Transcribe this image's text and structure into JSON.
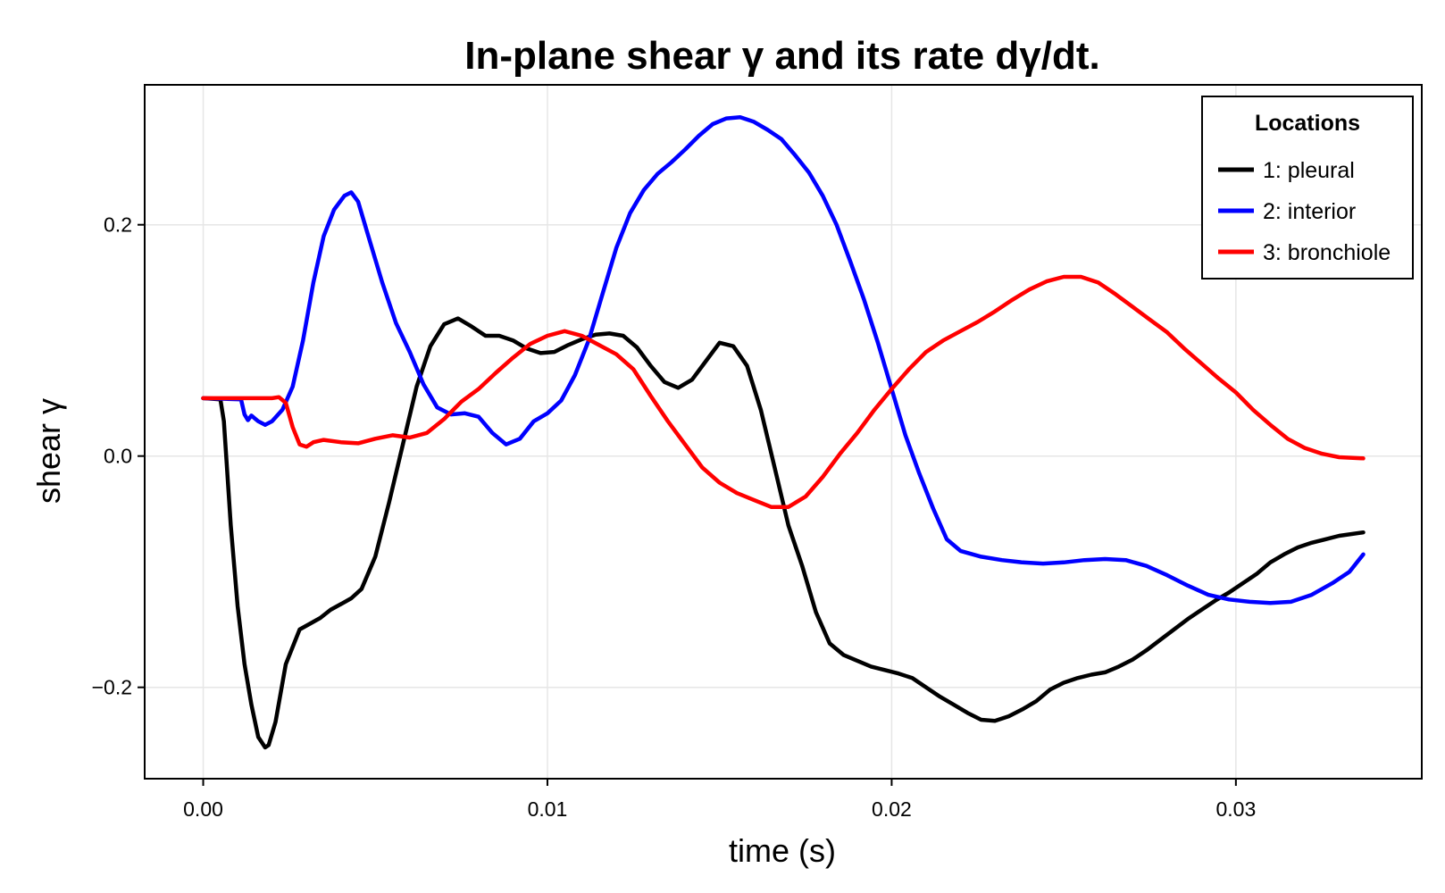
{
  "chart_data": {
    "type": "line",
    "title": "In-plane shear γ and its rate dγ/dt.",
    "xlabel": "time (s)",
    "ylabel": "shear γ",
    "xlim": [
      -0.0017,
      0.0354
    ],
    "ylim": [
      -0.279,
      0.321
    ],
    "xticks": [
      0.0,
      0.01,
      0.02,
      0.03
    ],
    "xtick_labels": [
      "0.00",
      "0.01",
      "0.02",
      "0.03"
    ],
    "yticks": [
      -0.2,
      0.0,
      0.2
    ],
    "ytick_labels": [
      "−0.2",
      "0.0",
      "0.2"
    ],
    "grid": true,
    "legend": {
      "title": "Locations",
      "position": "top-right"
    },
    "series": [
      {
        "name": "1: pleural",
        "color": "#000000",
        "points": [
          [
            0.0,
            0.05
          ],
          [
            0.0005,
            0.049
          ],
          [
            0.0006,
            0.03
          ],
          [
            0.0008,
            -0.06
          ],
          [
            0.001,
            -0.13
          ],
          [
            0.0012,
            -0.18
          ],
          [
            0.0014,
            -0.215
          ],
          [
            0.0016,
            -0.243
          ],
          [
            0.0018,
            -0.252
          ],
          [
            0.0019,
            -0.25
          ],
          [
            0.0021,
            -0.23
          ],
          [
            0.0024,
            -0.18
          ],
          [
            0.0028,
            -0.15
          ],
          [
            0.0031,
            -0.145
          ],
          [
            0.0034,
            -0.14
          ],
          [
            0.0037,
            -0.133
          ],
          [
            0.004,
            -0.128
          ],
          [
            0.0043,
            -0.123
          ],
          [
            0.0046,
            -0.115
          ],
          [
            0.005,
            -0.087
          ],
          [
            0.0054,
            -0.04
          ],
          [
            0.0058,
            0.01
          ],
          [
            0.0062,
            0.06
          ],
          [
            0.0066,
            0.095
          ],
          [
            0.007,
            0.114
          ],
          [
            0.0074,
            0.119
          ],
          [
            0.0078,
            0.112
          ],
          [
            0.0082,
            0.104
          ],
          [
            0.0086,
            0.104
          ],
          [
            0.009,
            0.1
          ],
          [
            0.0094,
            0.093
          ],
          [
            0.0098,
            0.089
          ],
          [
            0.0102,
            0.09
          ],
          [
            0.0106,
            0.096
          ],
          [
            0.011,
            0.101
          ],
          [
            0.0114,
            0.105
          ],
          [
            0.0118,
            0.106
          ],
          [
            0.0122,
            0.104
          ],
          [
            0.0126,
            0.094
          ],
          [
            0.013,
            0.078
          ],
          [
            0.0134,
            0.064
          ],
          [
            0.0138,
            0.059
          ],
          [
            0.0142,
            0.066
          ],
          [
            0.0146,
            0.082
          ],
          [
            0.015,
            0.098
          ],
          [
            0.0154,
            0.095
          ],
          [
            0.0158,
            0.078
          ],
          [
            0.0162,
            0.04
          ],
          [
            0.0166,
            -0.01
          ],
          [
            0.017,
            -0.06
          ],
          [
            0.0174,
            -0.095
          ],
          [
            0.0178,
            -0.135
          ],
          [
            0.0182,
            -0.162
          ],
          [
            0.0186,
            -0.172
          ],
          [
            0.019,
            -0.177
          ],
          [
            0.0194,
            -0.182
          ],
          [
            0.0198,
            -0.185
          ],
          [
            0.0202,
            -0.188
          ],
          [
            0.0206,
            -0.192
          ],
          [
            0.021,
            -0.2
          ],
          [
            0.0214,
            -0.208
          ],
          [
            0.0218,
            -0.215
          ],
          [
            0.0222,
            -0.222
          ],
          [
            0.0226,
            -0.228
          ],
          [
            0.023,
            -0.229
          ],
          [
            0.0234,
            -0.225
          ],
          [
            0.0238,
            -0.219
          ],
          [
            0.0242,
            -0.212
          ],
          [
            0.0246,
            -0.202
          ],
          [
            0.025,
            -0.196
          ],
          [
            0.0254,
            -0.192
          ],
          [
            0.0258,
            -0.189
          ],
          [
            0.0262,
            -0.187
          ],
          [
            0.0266,
            -0.182
          ],
          [
            0.027,
            -0.176
          ],
          [
            0.0274,
            -0.168
          ],
          [
            0.0278,
            -0.159
          ],
          [
            0.0282,
            -0.15
          ],
          [
            0.0286,
            -0.141
          ],
          [
            0.029,
            -0.133
          ],
          [
            0.0294,
            -0.125
          ],
          [
            0.0298,
            -0.118
          ],
          [
            0.0302,
            -0.11
          ],
          [
            0.0306,
            -0.102
          ],
          [
            0.031,
            -0.092
          ],
          [
            0.0314,
            -0.085
          ],
          [
            0.0318,
            -0.079
          ],
          [
            0.0322,
            -0.075
          ],
          [
            0.0326,
            -0.072
          ],
          [
            0.033,
            -0.069
          ],
          [
            0.0337,
            -0.066
          ]
        ]
      },
      {
        "name": "2: interior",
        "color": "#0000ff",
        "points": [
          [
            0.0,
            0.05
          ],
          [
            0.0011,
            0.049
          ],
          [
            0.0012,
            0.036
          ],
          [
            0.0013,
            0.031
          ],
          [
            0.0014,
            0.035
          ],
          [
            0.0016,
            0.03
          ],
          [
            0.0018,
            0.027
          ],
          [
            0.002,
            0.03
          ],
          [
            0.0023,
            0.04
          ],
          [
            0.0026,
            0.06
          ],
          [
            0.0029,
            0.1
          ],
          [
            0.0032,
            0.15
          ],
          [
            0.0035,
            0.19
          ],
          [
            0.0038,
            0.213
          ],
          [
            0.0041,
            0.225
          ],
          [
            0.0043,
            0.228
          ],
          [
            0.0045,
            0.22
          ],
          [
            0.0048,
            0.19
          ],
          [
            0.0052,
            0.15
          ],
          [
            0.0056,
            0.115
          ],
          [
            0.006,
            0.09
          ],
          [
            0.0064,
            0.062
          ],
          [
            0.0068,
            0.042
          ],
          [
            0.0072,
            0.036
          ],
          [
            0.0076,
            0.037
          ],
          [
            0.008,
            0.034
          ],
          [
            0.0084,
            0.02
          ],
          [
            0.0088,
            0.01
          ],
          [
            0.0092,
            0.015
          ],
          [
            0.0096,
            0.03
          ],
          [
            0.01,
            0.037
          ],
          [
            0.0104,
            0.048
          ],
          [
            0.0108,
            0.07
          ],
          [
            0.0112,
            0.1
          ],
          [
            0.0116,
            0.14
          ],
          [
            0.012,
            0.18
          ],
          [
            0.0124,
            0.21
          ],
          [
            0.0128,
            0.23
          ],
          [
            0.0132,
            0.244
          ],
          [
            0.0136,
            0.254
          ],
          [
            0.014,
            0.265
          ],
          [
            0.0144,
            0.277
          ],
          [
            0.0148,
            0.287
          ],
          [
            0.0152,
            0.292
          ],
          [
            0.0156,
            0.293
          ],
          [
            0.016,
            0.289
          ],
          [
            0.0164,
            0.282
          ],
          [
            0.0168,
            0.274
          ],
          [
            0.0172,
            0.26
          ],
          [
            0.0176,
            0.245
          ],
          [
            0.018,
            0.225
          ],
          [
            0.0184,
            0.2
          ],
          [
            0.0188,
            0.168
          ],
          [
            0.0192,
            0.135
          ],
          [
            0.0196,
            0.098
          ],
          [
            0.02,
            0.058
          ],
          [
            0.0204,
            0.018
          ],
          [
            0.0208,
            -0.015
          ],
          [
            0.0212,
            -0.045
          ],
          [
            0.0216,
            -0.072
          ],
          [
            0.022,
            -0.082
          ],
          [
            0.0226,
            -0.087
          ],
          [
            0.0232,
            -0.09
          ],
          [
            0.0238,
            -0.092
          ],
          [
            0.0244,
            -0.093
          ],
          [
            0.025,
            -0.092
          ],
          [
            0.0256,
            -0.09
          ],
          [
            0.0262,
            -0.089
          ],
          [
            0.0268,
            -0.09
          ],
          [
            0.0274,
            -0.095
          ],
          [
            0.028,
            -0.103
          ],
          [
            0.0286,
            -0.112
          ],
          [
            0.0292,
            -0.12
          ],
          [
            0.0298,
            -0.124
          ],
          [
            0.0304,
            -0.126
          ],
          [
            0.031,
            -0.127
          ],
          [
            0.0316,
            -0.126
          ],
          [
            0.0322,
            -0.12
          ],
          [
            0.0328,
            -0.11
          ],
          [
            0.0333,
            -0.1
          ],
          [
            0.0337,
            -0.085
          ]
        ]
      },
      {
        "name": "3: bronchiole",
        "color": "#ff0000",
        "points": [
          [
            0.0,
            0.05
          ],
          [
            0.002,
            0.05
          ],
          [
            0.0022,
            0.051
          ],
          [
            0.0024,
            0.046
          ],
          [
            0.0026,
            0.025
          ],
          [
            0.0028,
            0.01
          ],
          [
            0.003,
            0.008
          ],
          [
            0.0032,
            0.012
          ],
          [
            0.0035,
            0.014
          ],
          [
            0.004,
            0.012
          ],
          [
            0.0045,
            0.011
          ],
          [
            0.005,
            0.015
          ],
          [
            0.0055,
            0.018
          ],
          [
            0.006,
            0.016
          ],
          [
            0.0065,
            0.02
          ],
          [
            0.007,
            0.032
          ],
          [
            0.0075,
            0.047
          ],
          [
            0.008,
            0.058
          ],
          [
            0.0085,
            0.072
          ],
          [
            0.009,
            0.085
          ],
          [
            0.0095,
            0.097
          ],
          [
            0.01,
            0.104
          ],
          [
            0.0105,
            0.108
          ],
          [
            0.011,
            0.104
          ],
          [
            0.0115,
            0.096
          ],
          [
            0.012,
            0.088
          ],
          [
            0.0125,
            0.075
          ],
          [
            0.013,
            0.052
          ],
          [
            0.0135,
            0.03
          ],
          [
            0.014,
            0.01
          ],
          [
            0.0145,
            -0.01
          ],
          [
            0.015,
            -0.023
          ],
          [
            0.0155,
            -0.032
          ],
          [
            0.016,
            -0.038
          ],
          [
            0.0165,
            -0.044
          ],
          [
            0.017,
            -0.044
          ],
          [
            0.0175,
            -0.035
          ],
          [
            0.018,
            -0.018
          ],
          [
            0.0185,
            0.002
          ],
          [
            0.019,
            0.02
          ],
          [
            0.0195,
            0.04
          ],
          [
            0.02,
            0.058
          ],
          [
            0.0205,
            0.075
          ],
          [
            0.021,
            0.09
          ],
          [
            0.0215,
            0.1
          ],
          [
            0.022,
            0.108
          ],
          [
            0.0225,
            0.116
          ],
          [
            0.023,
            0.125
          ],
          [
            0.0235,
            0.135
          ],
          [
            0.024,
            0.144
          ],
          [
            0.0245,
            0.151
          ],
          [
            0.025,
            0.155
          ],
          [
            0.0255,
            0.155
          ],
          [
            0.026,
            0.15
          ],
          [
            0.0265,
            0.14
          ],
          [
            0.027,
            0.129
          ],
          [
            0.0275,
            0.118
          ],
          [
            0.028,
            0.107
          ],
          [
            0.0285,
            0.093
          ],
          [
            0.029,
            0.08
          ],
          [
            0.0295,
            0.067
          ],
          [
            0.03,
            0.055
          ],
          [
            0.0305,
            0.04
          ],
          [
            0.031,
            0.027
          ],
          [
            0.0315,
            0.015
          ],
          [
            0.032,
            0.007
          ],
          [
            0.0325,
            0.002
          ],
          [
            0.033,
            -0.001
          ],
          [
            0.0337,
            -0.002
          ]
        ]
      }
    ]
  }
}
